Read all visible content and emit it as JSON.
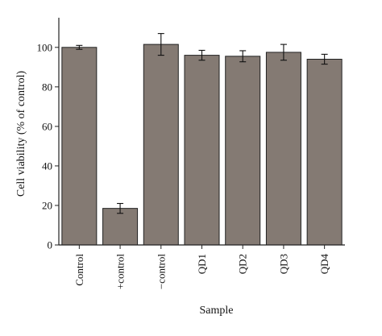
{
  "chart_data": {
    "type": "bar",
    "title": "",
    "xlabel": "Sample",
    "ylabel": "Cell viability (% of control)",
    "ylim": [
      0,
      115
    ],
    "yticks": [
      0,
      20,
      40,
      60,
      80,
      100
    ],
    "grid": false,
    "categories": [
      "Control",
      "+control",
      "−control",
      "QD1",
      "QD2",
      "QD3",
      "QD4"
    ],
    "values": [
      100,
      18.5,
      101.5,
      96,
      95.5,
      97.5,
      94
    ],
    "errors": [
      1,
      2.5,
      5.5,
      2.5,
      2.8,
      4,
      2.5
    ],
    "bar_color": "#847a73"
  }
}
